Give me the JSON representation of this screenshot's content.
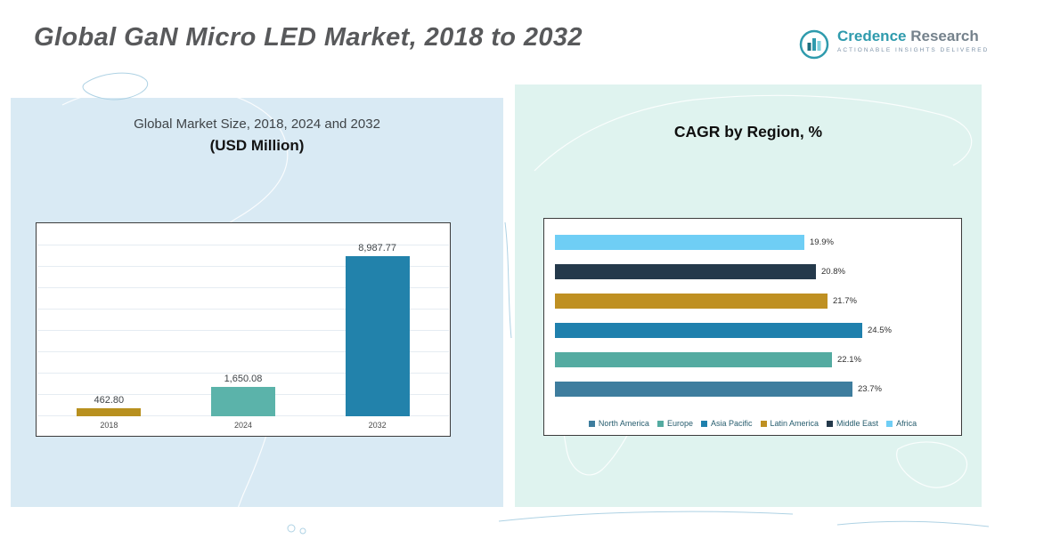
{
  "page": {
    "title": "Global GaN Micro LED Market, 2018 to 2032"
  },
  "logo": {
    "brand_primary": "Credence",
    "brand_secondary": "Research",
    "tagline": "ACTIONABLE INSIGHTS DELIVERED"
  },
  "chart_data": [
    {
      "type": "bar",
      "title": "Global Market Size, 2018, 2024 and 2032",
      "subtitle": "(USD Million)",
      "categories": [
        "2018",
        "2024",
        "2032"
      ],
      "values": [
        462.8,
        1650.08,
        8987.77
      ],
      "value_labels": [
        "462.80",
        "1,650.08",
        "8,987.77"
      ],
      "colors": [
        "#b8901f",
        "#5bb3aa",
        "#2282ab"
      ],
      "ylim": [
        0,
        10000
      ],
      "grid": true,
      "legend_position": "none"
    },
    {
      "type": "bar",
      "orientation": "horizontal",
      "title": "CAGR by Region, %",
      "categories": [
        "Africa",
        "Middle East",
        "Latin America",
        "Asia Pacific",
        "Europe",
        "North America"
      ],
      "values": [
        19.9,
        20.8,
        21.7,
        24.5,
        22.1,
        23.7
      ],
      "value_labels": [
        "19.9%",
        "20.8%",
        "21.7%",
        "24.5%",
        "22.1%",
        "23.7%"
      ],
      "colors": [
        "#6fcef5",
        "#24394b",
        "#bf9022",
        "#1f80ad",
        "#54aba1",
        "#3e7d9e"
      ],
      "xlim": [
        0,
        25
      ],
      "grid": false,
      "legend_position": "bottom",
      "legend": [
        {
          "label": "North America",
          "color": "#3e7d9e"
        },
        {
          "label": "Europe",
          "color": "#54aba1"
        },
        {
          "label": "Asia Pacific",
          "color": "#1f80ad"
        },
        {
          "label": "Latin America",
          "color": "#bf9022"
        },
        {
          "label": "Middle East",
          "color": "#24394b"
        },
        {
          "label": "Africa",
          "color": "#6fcef5"
        }
      ]
    }
  ]
}
